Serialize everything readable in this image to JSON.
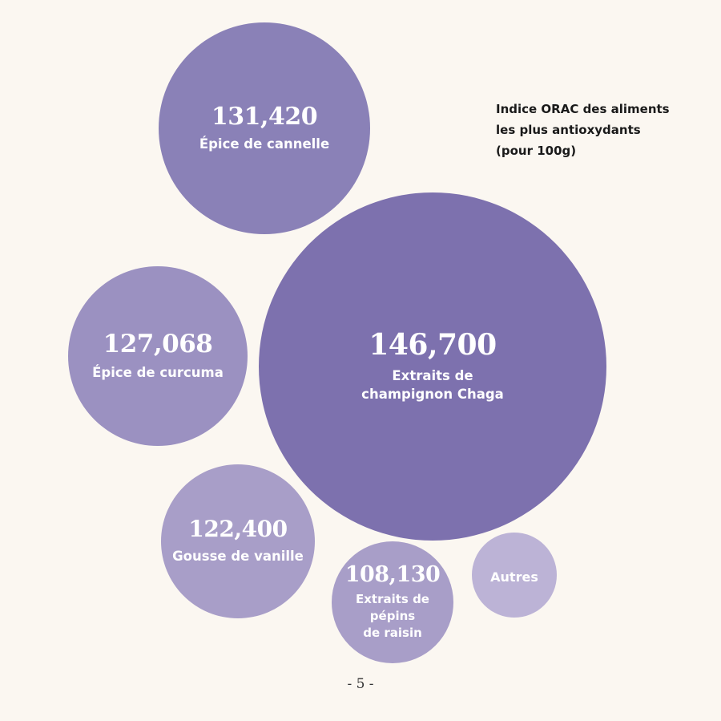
{
  "title": "Indice ORAC des aliments\nles plus antioxydants\n(pour 100g)",
  "page_number": "- 5 -",
  "colors": {
    "background": "#fbf7f1",
    "bubble_dark": "#7d71ae",
    "bubble_mid": "#8a81b7",
    "bubble_light": "#9b91c1",
    "bubble_lighter": "#a89ec8",
    "bubble_lightest": "#bcb3d6"
  },
  "chart_data": {
    "type": "bubble",
    "title": "Indice ORAC des aliments les plus antioxydants (pour 100g)",
    "series": [
      {
        "label": "Extraits de champignon Chaga",
        "value": 146700,
        "value_text": "146,700",
        "color": "#7d71ae"
      },
      {
        "label": "Épice de cannelle",
        "value": 131420,
        "value_text": "131,420",
        "color": "#8a81b7"
      },
      {
        "label": "Épice de curcuma",
        "value": 127068,
        "value_text": "127,068",
        "color": "#9b91c1"
      },
      {
        "label": "Gousse de vanille",
        "value": 122400,
        "value_text": "122,400",
        "color": "#a89ec8"
      },
      {
        "label": "Extraits de pépins de raisin",
        "value": 108130,
        "value_text": "108,130",
        "color": "#a89ec8"
      },
      {
        "label": "Autres",
        "value": null,
        "value_text": "",
        "color": "#bcb3d6"
      }
    ]
  }
}
